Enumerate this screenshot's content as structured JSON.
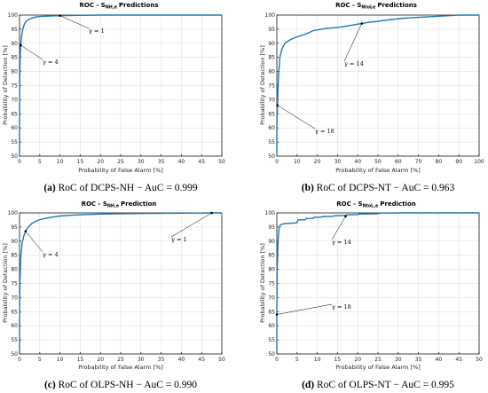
{
  "chart_data": [
    {
      "type": "line",
      "title_main": "ROC - S",
      "title_sub": "NH,e",
      "title_tail": "Predictions",
      "xlabel": "Probability of False Alarm [%]",
      "ylabel": "Probability of Detection [%]",
      "xlim": [
        0,
        50
      ],
      "ylim": [
        50,
        100
      ],
      "xticks": [
        0,
        5,
        10,
        15,
        20,
        25,
        30,
        35,
        40,
        45,
        50
      ],
      "yticks": [
        50,
        55,
        60,
        65,
        70,
        75,
        80,
        85,
        90,
        95,
        100
      ],
      "grid": true,
      "series": [
        {
          "x": [
            0,
            0,
            0.05,
            0.15,
            0.3,
            0.5,
            0.8,
            1.2,
            1.6,
            2.1,
            2.6,
            3.2,
            4,
            5,
            6.5,
            8,
            10,
            14,
            20,
            30,
            40,
            50
          ],
          "y": [
            50,
            60,
            75,
            85,
            89.3,
            92.5,
            95,
            96.8,
            97.8,
            98.3,
            98.7,
            99,
            99.3,
            99.5,
            99.6,
            99.7,
            99.8,
            99.9,
            100,
            100,
            100,
            100
          ]
        }
      ],
      "annotations": [
        {
          "text": "γ = 1",
          "x": 10,
          "y": 99.8
        },
        {
          "text": "γ = 4",
          "x": 0.3,
          "y": 89.3
        }
      ],
      "caption_label": "(a)",
      "caption_text": "RoC of DCPS-NH − AuC = 0.999"
    },
    {
      "type": "line",
      "title_main": "ROC - S",
      "title_sub": "NtoLe",
      "title_tail": "Predictions",
      "xlabel": "Probability of False Alarm [%]",
      "ylabel": "Probability of Detection [%]",
      "xlim": [
        0,
        100
      ],
      "ylim": [
        50,
        100
      ],
      "xticks": [
        0,
        10,
        20,
        30,
        40,
        50,
        60,
        70,
        80,
        90,
        100
      ],
      "yticks": [
        50,
        55,
        60,
        65,
        70,
        75,
        80,
        85,
        90,
        95,
        100
      ],
      "grid": true,
      "series": [
        {
          "x": [
            0,
            0,
            0.3,
            0.8,
            1.5,
            2.5,
            4,
            6,
            8,
            10,
            13,
            16,
            18,
            22,
            25,
            28,
            32,
            36,
            40,
            42,
            45,
            50,
            55,
            60,
            65,
            70,
            75,
            80,
            85,
            90,
            95,
            100
          ],
          "y": [
            50,
            60,
            68,
            78,
            85,
            88,
            90,
            91,
            91.7,
            92.3,
            93,
            93.8,
            94.5,
            95,
            95.3,
            95.5,
            95.8,
            96.3,
            96.8,
            97,
            97.4,
            97.8,
            98.3,
            98.7,
            99,
            99.2,
            99.4,
            99.6,
            99.8,
            100,
            100,
            100
          ]
        }
      ],
      "annotations": [
        {
          "text": "γ = 14",
          "x": 42,
          "y": 97
        },
        {
          "text": "γ = 18",
          "x": 0.3,
          "y": 68
        }
      ],
      "caption_label": "(b)",
      "caption_text": "RoC of DCPS-NT − AuC = 0.963"
    },
    {
      "type": "line",
      "title_main": "ROC - S",
      "title_sub": "NH,e",
      "title_tail": "Prediction",
      "xlabel": "Probability of False Alarm [%]",
      "ylabel": "Probability of Detection [%]",
      "xlim": [
        0,
        50
      ],
      "ylim": [
        50,
        100
      ],
      "xticks": [
        0,
        5,
        10,
        15,
        20,
        25,
        30,
        35,
        40,
        45,
        50
      ],
      "yticks": [
        50,
        55,
        60,
        65,
        70,
        75,
        80,
        85,
        90,
        95,
        100
      ],
      "grid": true,
      "series": [
        {
          "x": [
            0,
            0,
            0.1,
            0.3,
            0.6,
            1,
            1.5,
            2.2,
            3,
            4,
            5,
            6.5,
            8,
            10,
            13,
            16,
            20,
            25,
            30,
            35,
            40,
            45,
            47.5,
            50
          ],
          "y": [
            50,
            62,
            75,
            84,
            89,
            91.5,
            93.5,
            95,
            96.2,
            97,
            97.6,
            98.1,
            98.5,
            98.9,
            99.2,
            99.4,
            99.6,
            99.7,
            99.8,
            99.85,
            99.9,
            99.95,
            100,
            100
          ]
        }
      ],
      "annotations": [
        {
          "text": "γ = 4",
          "x": 1.5,
          "y": 93.5
        },
        {
          "text": "γ = 1",
          "x": 47.5,
          "y": 100
        }
      ],
      "caption_label": "(c)",
      "caption_text": "RoC of OLPS-NH − AuC = 0.990"
    },
    {
      "type": "line",
      "title_main": "ROC - S",
      "title_sub": "NtoL,e",
      "title_tail": "Prediction",
      "xlabel": "Probability of False Alarm [%]",
      "ylabel": "Probability of Detection [%]",
      "xlim": [
        0,
        50
      ],
      "ylim": [
        50,
        100
      ],
      "xticks": [
        0,
        5,
        10,
        15,
        20,
        25,
        30,
        35,
        40,
        45,
        50
      ],
      "yticks": [
        50,
        55,
        60,
        65,
        70,
        75,
        80,
        85,
        90,
        95,
        100
      ],
      "grid": true,
      "series": [
        {
          "x": [
            0,
            0,
            0.1,
            0.3,
            0.5,
            0.8,
            1.2,
            2,
            3,
            4,
            5,
            5.2,
            7,
            7.2,
            9,
            9.2,
            11,
            11.2,
            14,
            14.2,
            17,
            17.3,
            20,
            20.3,
            25,
            25.3,
            30,
            40,
            50
          ],
          "y": [
            50,
            64,
            80,
            90,
            94,
            95.5,
            96,
            96.2,
            96.3,
            96.4,
            96.5,
            97.5,
            97.6,
            98,
            98.1,
            98.4,
            98.5,
            98.7,
            98.8,
            99,
            99.1,
            99.3,
            99.4,
            99.6,
            99.7,
            99.9,
            100,
            100,
            100
          ]
        }
      ],
      "annotations": [
        {
          "text": "γ = 14",
          "x": 17,
          "y": 98.8
        },
        {
          "text": "γ = 18",
          "x": 0,
          "y": 64
        }
      ],
      "caption_label": "(d)",
      "caption_text": "RoC of OLPS-NT − AuC = 0.995"
    }
  ]
}
